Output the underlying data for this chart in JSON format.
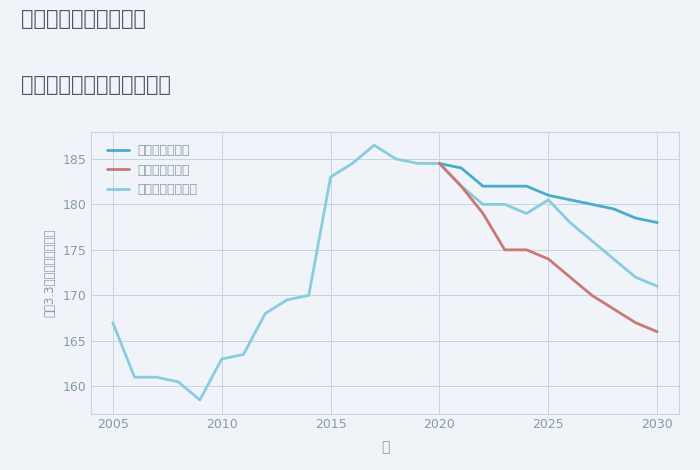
{
  "title_line1": "兵庫県西宮市枝川町の",
  "title_line2": "中古マンションの価格推移",
  "xlabel": "年",
  "ylabel": "坪（3.3㎡）単価（万円）",
  "xlim": [
    2004,
    2031
  ],
  "ylim": [
    157,
    188
  ],
  "yticks": [
    160,
    165,
    170,
    175,
    180,
    185
  ],
  "xticks": [
    2005,
    2010,
    2015,
    2020,
    2025,
    2030
  ],
  "background_color": "#f0f4f8",
  "grid_color": "#c5d5e5",
  "title_color": "#555566",
  "tick_color": "#8899aa",
  "normal_scenario": {
    "label": "ノーマルシナリオ",
    "color": "#88ccdd",
    "linewidth": 2.0,
    "x": [
      2005,
      2006,
      2007,
      2008,
      2009,
      2010,
      2011,
      2012,
      2013,
      2014,
      2015,
      2016,
      2017,
      2018,
      2019,
      2020,
      2021,
      2022,
      2023,
      2024,
      2025,
      2026,
      2027,
      2028,
      2029,
      2030
    ],
    "y": [
      167,
      161,
      161,
      160.5,
      158.5,
      163,
      163.5,
      168,
      169.5,
      170,
      183,
      184.5,
      186.5,
      185,
      184.5,
      184.5,
      182,
      180,
      180,
      179,
      180.5,
      178,
      176,
      174,
      172,
      171
    ]
  },
  "good_scenario": {
    "label": "グッドシナリオ",
    "color": "#4aabcc",
    "linewidth": 2.0,
    "x": [
      2020,
      2021,
      2022,
      2023,
      2024,
      2025,
      2026,
      2027,
      2028,
      2029,
      2030
    ],
    "y": [
      184.5,
      184,
      182,
      182,
      182,
      181,
      180.5,
      180,
      179.5,
      178.5,
      178
    ]
  },
  "bad_scenario": {
    "label": "バッドシナリオ",
    "color": "#cc7777",
    "linewidth": 2.0,
    "x": [
      2020,
      2021,
      2022,
      2023,
      2024,
      2025,
      2026,
      2027,
      2028,
      2029,
      2030
    ],
    "y": [
      184.5,
      182,
      179,
      175,
      175,
      174,
      172,
      170,
      168.5,
      167,
      166
    ]
  }
}
